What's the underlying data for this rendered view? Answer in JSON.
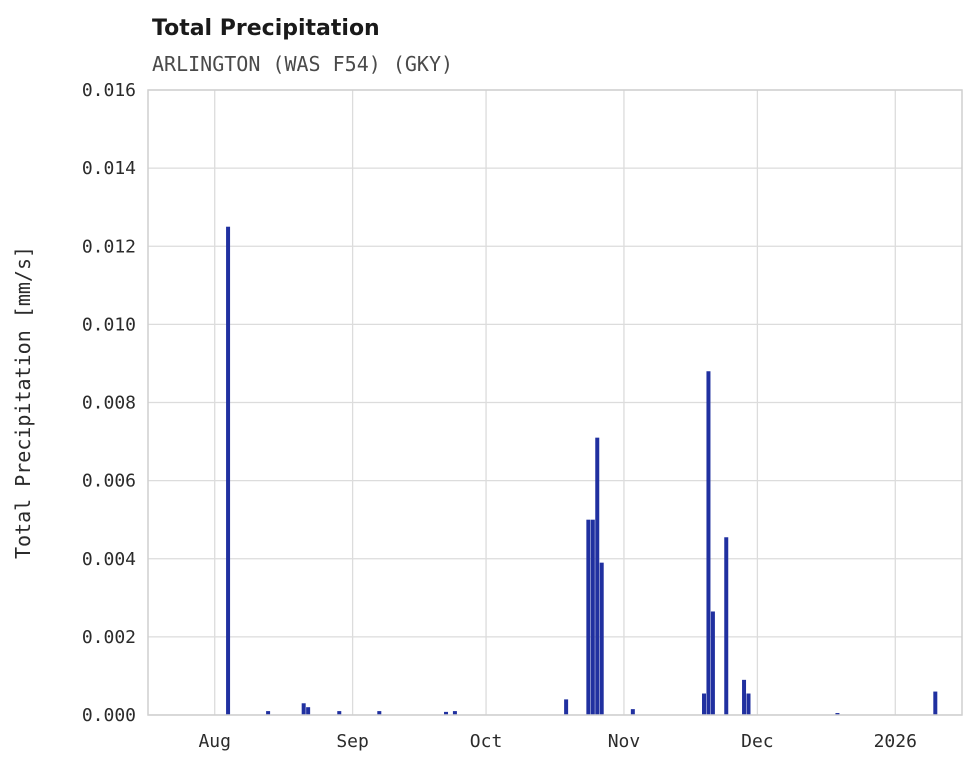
{
  "header": {
    "title": "Total Precipitation",
    "subtitle": "ARLINGTON (WAS F54) (GKY)"
  },
  "chart_data": {
    "type": "bar",
    "title": "Total Precipitation",
    "subtitle": "ARLINGTON (WAS F54) (GKY)",
    "xlabel": "",
    "ylabel": "Total Precipitation [mm/s]",
    "ylim": [
      0,
      0.016
    ],
    "xlim_days_from_aug1": [
      -15,
      168
    ],
    "grid": true,
    "legend": "none",
    "bar_color": "#2030a0",
    "grid_color": "#dcdcdc",
    "border_color": "#cfcfcf",
    "yticks": [
      {
        "value": 0.0,
        "label": "0.000"
      },
      {
        "value": 0.002,
        "label": "0.002"
      },
      {
        "value": 0.004,
        "label": "0.004"
      },
      {
        "value": 0.006,
        "label": "0.006"
      },
      {
        "value": 0.008,
        "label": "0.008"
      },
      {
        "value": 0.01,
        "label": "0.010"
      },
      {
        "value": 0.012,
        "label": "0.012"
      },
      {
        "value": 0.014,
        "label": "0.014"
      },
      {
        "value": 0.016,
        "label": "0.016"
      }
    ],
    "xticks": [
      {
        "day": 0,
        "label": "Aug"
      },
      {
        "day": 31,
        "label": "Sep"
      },
      {
        "day": 61,
        "label": "Oct"
      },
      {
        "day": 92,
        "label": "Nov"
      },
      {
        "day": 122,
        "label": "Dec"
      },
      {
        "day": 153,
        "label": "2026"
      }
    ],
    "points": [
      {
        "day": 3,
        "value": 0.0125
      },
      {
        "day": 12,
        "value": 0.0001
      },
      {
        "day": 20,
        "value": 0.0003
      },
      {
        "day": 21,
        "value": 0.0002
      },
      {
        "day": 28,
        "value": 0.0001
      },
      {
        "day": 37,
        "value": 0.0001
      },
      {
        "day": 52,
        "value": 8e-05
      },
      {
        "day": 54,
        "value": 0.0001
      },
      {
        "day": 79,
        "value": 0.0004
      },
      {
        "day": 84,
        "value": 0.005
      },
      {
        "day": 85,
        "value": 0.005
      },
      {
        "day": 86,
        "value": 0.0071
      },
      {
        "day": 87,
        "value": 0.0039
      },
      {
        "day": 94,
        "value": 0.00015
      },
      {
        "day": 110,
        "value": 0.00055
      },
      {
        "day": 111,
        "value": 0.0088
      },
      {
        "day": 112,
        "value": 0.00265
      },
      {
        "day": 115,
        "value": 0.00455
      },
      {
        "day": 119,
        "value": 0.0009
      },
      {
        "day": 120,
        "value": 0.00055
      },
      {
        "day": 140,
        "value": 5e-05
      },
      {
        "day": 162,
        "value": 0.0006
      }
    ]
  }
}
